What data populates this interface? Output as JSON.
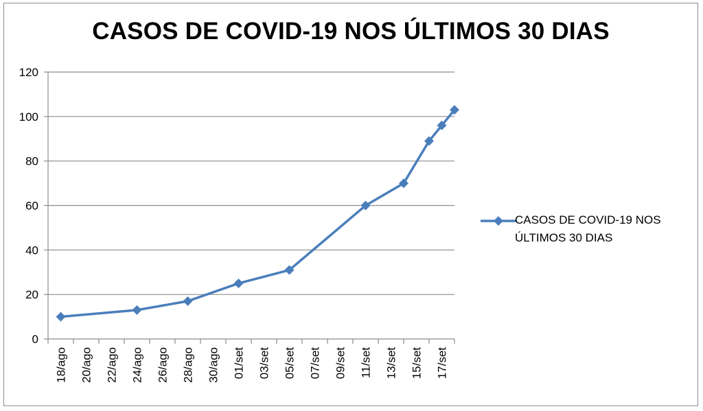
{
  "chart_data": {
    "type": "line",
    "title": "CASOS DE COVID-19 NOS ÚLTIMOS 30 DIAS",
    "xlabel": "",
    "ylabel": "",
    "x_tick_labels": [
      "18/ago",
      "20/ago",
      "22/ago",
      "24/ago",
      "26/ago",
      "28/ago",
      "30/ago",
      "01/set",
      "03/set",
      "05/set",
      "07/set",
      "09/set",
      "11/set",
      "13/set",
      "15/set",
      "17/set"
    ],
    "y_ticks": [
      0,
      20,
      40,
      60,
      80,
      100,
      120
    ],
    "ylim": [
      0,
      120
    ],
    "grid": true,
    "legend_position": "right",
    "series": [
      {
        "name": "CASOS DE COVID-19 NOS ÚLTIMOS 30 DIAS",
        "color": "#4a7ebb",
        "marker": "diamond",
        "points": [
          {
            "x": "18/ago",
            "y": 10
          },
          {
            "x": "24/ago",
            "y": 13
          },
          {
            "x": "28/ago",
            "y": 17
          },
          {
            "x": "01/set",
            "y": 25
          },
          {
            "x": "05/set",
            "y": 31
          },
          {
            "x": "11/set",
            "y": 60
          },
          {
            "x": "14/set",
            "y": 70
          },
          {
            "x": "16/set",
            "y": 89
          },
          {
            "x": "17/set",
            "y": 96
          },
          {
            "x": "18/set",
            "y": 103
          }
        ]
      }
    ]
  }
}
